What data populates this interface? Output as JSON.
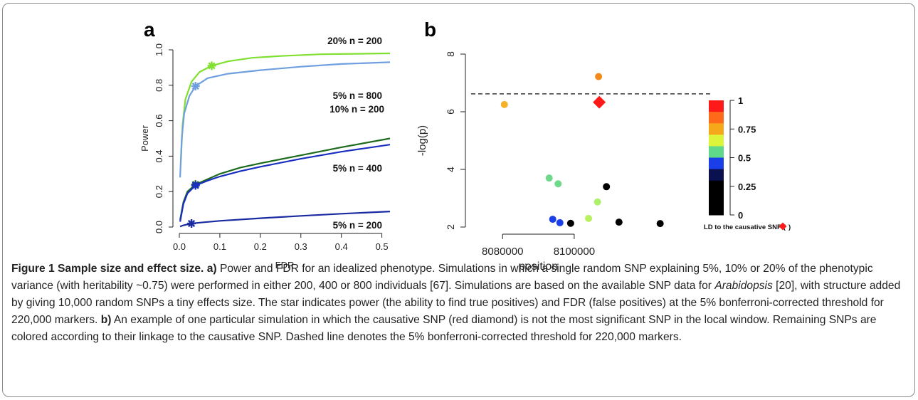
{
  "panel_a": {
    "letter": "a"
  },
  "panel_b": {
    "letter": "b"
  },
  "caption": {
    "title": "Figure 1 Sample size and effect size.",
    "a_label": "a)",
    "a_text_1": " Power and FDR for an idealized phenotype. Simulations in which a single random SNP explaining 5%, 10% or 20% of the phenotypic variance (with heritability ~0.75) were performed in either 200, 400 or 800 individuals [67]. Simulations are based on the available SNP data for ",
    "a_italic": "Arabidopsis",
    "a_text_2": " [20], with structure added by giving 10,000 random SNPs a tiny effects size. The star indicates power (the ability to find true positives) and FDR (false positives) at the 5% bonferroni-corrected threshold for 220,000 markers. ",
    "b_label": "b)",
    "b_text": " An example of one particular simulation in which the causative SNP (red diamond) is not the most significant SNP in the local window. Remaining SNPs are colored according to their linkage to the causative SNP. Dashed line denotes the 5% bonferroni-corrected threshold for 220,000 markers."
  },
  "chart_data": [
    {
      "type": "line",
      "panel": "a",
      "xlabel": "FDR",
      "ylabel": "Power",
      "xlim": [
        0,
        0.52
      ],
      "ylim": [
        0,
        1.0
      ],
      "xticks": [
        "0.0",
        "0.1",
        "0.2",
        "0.3",
        "0.4",
        "0.5"
      ],
      "yticks": [
        "0.0",
        "0.2",
        "0.4",
        "0.6",
        "0.8",
        "1.0"
      ],
      "series": [
        {
          "name": "20% n = 200",
          "color": "#7fe030",
          "points": [
            [
              0.004,
              0.38
            ],
            [
              0.008,
              0.58
            ],
            [
              0.015,
              0.72
            ],
            [
              0.03,
              0.82
            ],
            [
              0.05,
              0.875
            ],
            [
              0.08,
              0.91
            ],
            [
              0.12,
              0.935
            ],
            [
              0.18,
              0.955
            ],
            [
              0.25,
              0.965
            ],
            [
              0.35,
              0.975
            ],
            [
              0.45,
              0.978
            ],
            [
              0.52,
              0.98
            ]
          ],
          "star": [
            0.08,
            0.91
          ]
        },
        {
          "name": "5% n = 800",
          "color": "#6f9fdf",
          "points": [
            [
              0.002,
              0.28
            ],
            [
              0.006,
              0.5
            ],
            [
              0.012,
              0.64
            ],
            [
              0.025,
              0.74
            ],
            [
              0.04,
              0.795
            ],
            [
              0.07,
              0.84
            ],
            [
              0.12,
              0.865
            ],
            [
              0.2,
              0.885
            ],
            [
              0.3,
              0.905
            ],
            [
              0.4,
              0.92
            ],
            [
              0.52,
              0.93
            ]
          ],
          "star": [
            0.04,
            0.795
          ]
        },
        {
          "name": "10% n = 200",
          "color": "#1e6b1e",
          "points": [
            [
              0.002,
              0.04
            ],
            [
              0.01,
              0.14
            ],
            [
              0.02,
              0.2
            ],
            [
              0.04,
              0.24
            ],
            [
              0.07,
              0.27
            ],
            [
              0.1,
              0.3
            ],
            [
              0.15,
              0.335
            ],
            [
              0.2,
              0.36
            ],
            [
              0.3,
              0.405
            ],
            [
              0.4,
              0.45
            ],
            [
              0.52,
              0.5
            ]
          ],
          "star": [
            0.04,
            0.24
          ]
        },
        {
          "name": "5% n = 400",
          "color": "#1a2ec0",
          "points": [
            [
              0.002,
              0.03
            ],
            [
              0.01,
              0.13
            ],
            [
              0.02,
              0.19
            ],
            [
              0.04,
              0.235
            ],
            [
              0.07,
              0.262
            ],
            [
              0.1,
              0.285
            ],
            [
              0.15,
              0.315
            ],
            [
              0.2,
              0.34
            ],
            [
              0.3,
              0.385
            ],
            [
              0.4,
              0.425
            ],
            [
              0.52,
              0.465
            ]
          ],
          "star": [
            0.04,
            0.235
          ]
        },
        {
          "name": "5% n = 200",
          "color": "#1a2aa0",
          "points": [
            [
              0.002,
              0.003
            ],
            [
              0.01,
              0.01
            ],
            [
              0.03,
              0.02
            ],
            [
              0.06,
              0.027
            ],
            [
              0.1,
              0.035
            ],
            [
              0.2,
              0.05
            ],
            [
              0.3,
              0.063
            ],
            [
              0.4,
              0.075
            ],
            [
              0.52,
              0.088
            ]
          ],
          "star": [
            0.03,
            0.02
          ]
        }
      ]
    },
    {
      "type": "scatter",
      "panel": "b",
      "xlabel": "position",
      "ylabel": "-log(p)",
      "xlim": [
        8072000,
        8134000
      ],
      "ylim": [
        2,
        8
      ],
      "xticks": [
        8080000,
        8100000
      ],
      "xtick_labels": [
        "8080000",
        "8100000"
      ],
      "yticks": [
        2,
        4,
        6,
        8
      ],
      "threshold": 6.62,
      "causative": {
        "x": 8107000,
        "y": 6.33,
        "color": "#ff1a1a"
      },
      "points": [
        {
          "x": 8106800,
          "y": 7.22,
          "color": "#f08a1a"
        },
        {
          "x": 8080500,
          "y": 6.25,
          "color": "#f5b22a"
        },
        {
          "x": 8093000,
          "y": 3.7,
          "color": "#6fd88a"
        },
        {
          "x": 8095500,
          "y": 3.5,
          "color": "#6fd88a"
        },
        {
          "x": 8106500,
          "y": 2.87,
          "color": "#aef06a"
        },
        {
          "x": 8104000,
          "y": 2.3,
          "color": "#b8f060"
        },
        {
          "x": 8109000,
          "y": 3.4,
          "color": "#000000"
        },
        {
          "x": 8094000,
          "y": 2.27,
          "color": "#1a3ee8"
        },
        {
          "x": 8096000,
          "y": 2.15,
          "color": "#1a3ee8"
        },
        {
          "x": 8099000,
          "y": 2.13,
          "color": "#000000"
        },
        {
          "x": 8112500,
          "y": 2.17,
          "color": "#000000"
        },
        {
          "x": 8124000,
          "y": 2.12,
          "color": "#000000"
        }
      ],
      "colorbar": {
        "colors": [
          "#ff1a1a",
          "#ff6a1a",
          "#f5a81a",
          "#dcf53a",
          "#5fd88a",
          "#1a3ee8",
          "#0a1050",
          "#000000",
          "#000000",
          "#000000"
        ],
        "tick_labels": [
          "1",
          "0.75",
          "0.5",
          "0.25",
          "0"
        ],
        "legend_text": "LD to the causative SNP (",
        "legend_text_close": ")"
      }
    }
  ]
}
